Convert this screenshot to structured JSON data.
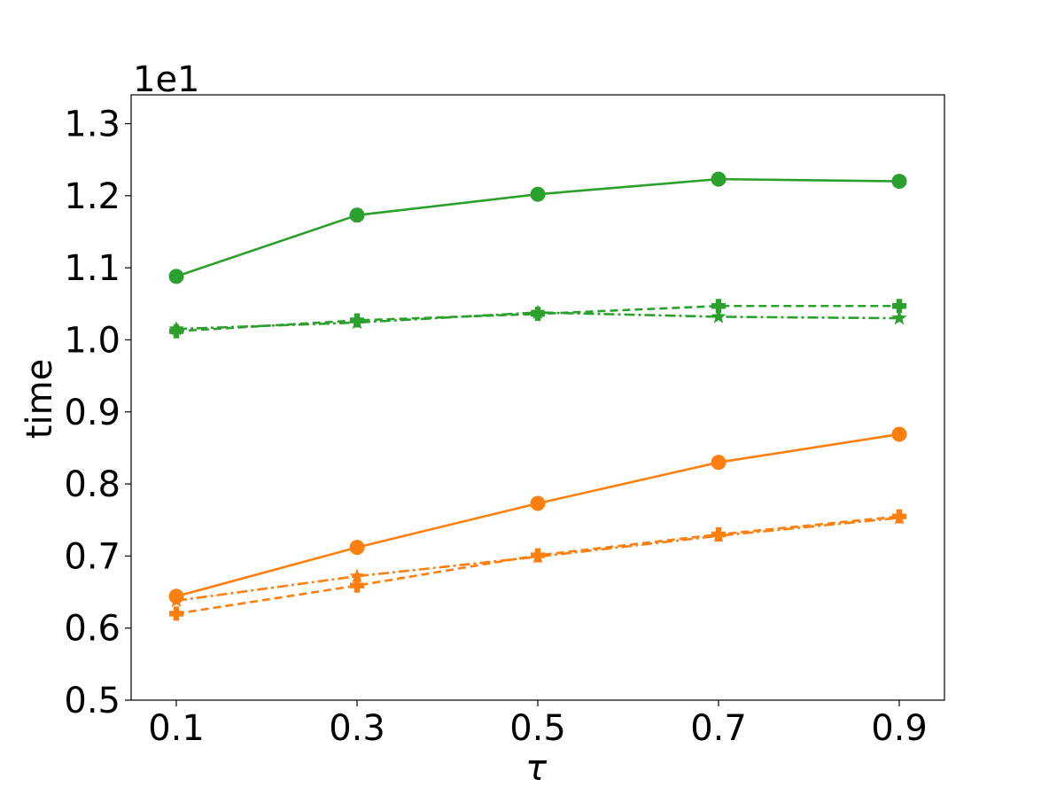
{
  "chart_data": {
    "type": "line",
    "title": "",
    "xlabel": "τ",
    "ylabel": "time",
    "y_offset_text": "1e1",
    "x": [
      0.1,
      0.3,
      0.5,
      0.7,
      0.9
    ],
    "x_tick_labels": [
      "0.1",
      "0.3",
      "0.5",
      "0.7",
      "0.9"
    ],
    "xlim": [
      0.05,
      0.95
    ],
    "y_ticks": [
      0.5,
      0.6,
      0.7,
      0.8,
      0.9,
      1.0,
      1.1,
      1.2,
      1.3
    ],
    "y_tick_labels": [
      "0.5",
      "0.6",
      "0.7",
      "0.8",
      "0.9",
      "1.0",
      "1.1",
      "1.2",
      "1.3"
    ],
    "ylim": [
      0.5,
      1.34
    ],
    "grid": false,
    "legend": "none",
    "series": [
      {
        "color": "#2ca02c",
        "linestyle": "solid",
        "marker": "circle",
        "values": [
          1.088,
          1.173,
          1.202,
          1.223,
          1.22
        ]
      },
      {
        "color": "#2ca02c",
        "linestyle": "dashed",
        "marker": "plus",
        "values": [
          1.012,
          1.027,
          1.036,
          1.047,
          1.047
        ]
      },
      {
        "color": "#2ca02c",
        "linestyle": "dashdot",
        "marker": "star",
        "values": [
          1.015,
          1.024,
          1.038,
          1.032,
          1.03
        ]
      },
      {
        "color": "#ff7f0e",
        "linestyle": "solid",
        "marker": "circle",
        "values": [
          0.644,
          0.712,
          0.773,
          0.83,
          0.869
        ]
      },
      {
        "color": "#ff7f0e",
        "linestyle": "dashed",
        "marker": "plus",
        "values": [
          0.62,
          0.659,
          0.701,
          0.73,
          0.755
        ]
      },
      {
        "color": "#ff7f0e",
        "linestyle": "dashdot",
        "marker": "star",
        "values": [
          0.638,
          0.672,
          0.699,
          0.728,
          0.753
        ]
      }
    ]
  }
}
